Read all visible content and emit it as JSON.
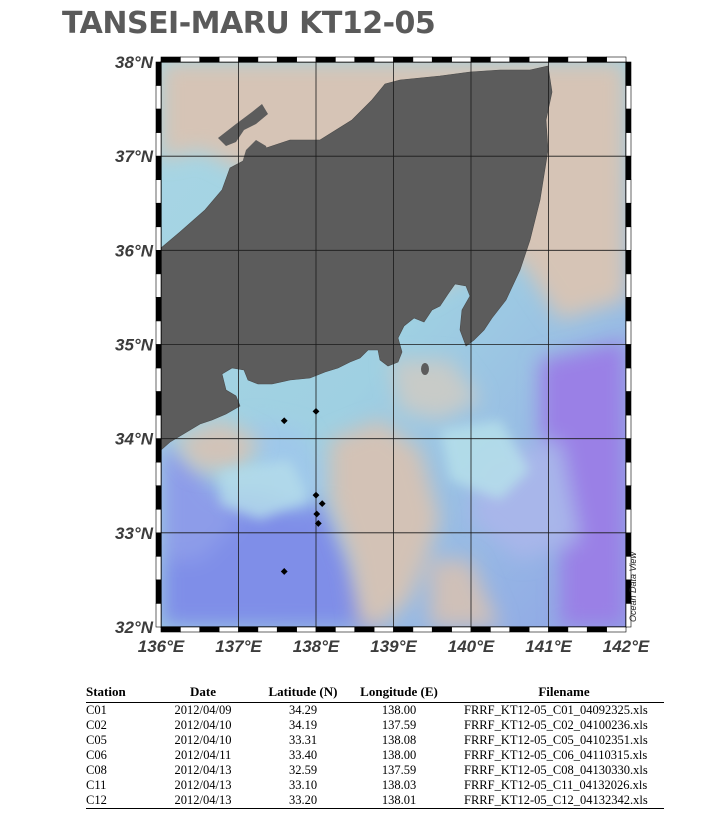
{
  "title": "TANSEI-MARU KT12-05",
  "map": {
    "lat_range": [
      32,
      38
    ],
    "lon_range": [
      136,
      142
    ],
    "lat_ticks": [
      "38°N",
      "37°N",
      "36°N",
      "35°N",
      "34°N",
      "33°N",
      "32°N"
    ],
    "lon_ticks": [
      "136°E",
      "137°E",
      "138°E",
      "139°E",
      "140°E",
      "141°E",
      "142°E"
    ],
    "credit": "Ocean Data View",
    "colors": {
      "land": "#5c5c5c",
      "shelf": "#d4c2b4",
      "mid": "#a9d7e4",
      "deep": "#7f8ee8",
      "deepest": "#9a7ee6"
    }
  },
  "stations": {
    "headers": {
      "station": "Station",
      "date": "Date",
      "lat": "Latitude (N)",
      "lon": "Longitude (E)",
      "file": "Filename"
    },
    "rows": [
      {
        "station": "C01",
        "date": "2012/04/09",
        "lat": "34.29",
        "lon": "138.00",
        "file": "FRRF_KT12-05_C01_04092325.xls",
        "lat_val": 34.29,
        "lon_val": 138.0
      },
      {
        "station": "C02",
        "date": "2012/04/10",
        "lat": "34.19",
        "lon": "137.59",
        "file": "FRRF_KT12-05_C02_04100236.xls",
        "lat_val": 34.19,
        "lon_val": 137.59
      },
      {
        "station": "C05",
        "date": "2012/04/10",
        "lat": "33.31",
        "lon": "138.08",
        "file": "FRRF_KT12-05_C05_04102351.xls",
        "lat_val": 33.31,
        "lon_val": 138.08
      },
      {
        "station": "C06",
        "date": "2012/04/11",
        "lat": "33.40",
        "lon": "138.00",
        "file": "FRRF_KT12-05_C06_04110315.xls",
        "lat_val": 33.4,
        "lon_val": 138.0
      },
      {
        "station": "C08",
        "date": "2012/04/13",
        "lat": "32.59",
        "lon": "137.59",
        "file": "FRRF_KT12-05_C08_04130330.xls",
        "lat_val": 32.59,
        "lon_val": 137.59
      },
      {
        "station": "C11",
        "date": "2012/04/13",
        "lat": "33.10",
        "lon": "138.03",
        "file": "FRRF_KT12-05_C11_04132026.xls",
        "lat_val": 33.1,
        "lon_val": 138.03
      },
      {
        "station": "C12",
        "date": "2012/04/13",
        "lat": "33.20",
        "lon": "138.01",
        "file": "FRRF_KT12-05_C12_04132342.xls",
        "lat_val": 33.2,
        "lon_val": 138.01
      }
    ]
  }
}
